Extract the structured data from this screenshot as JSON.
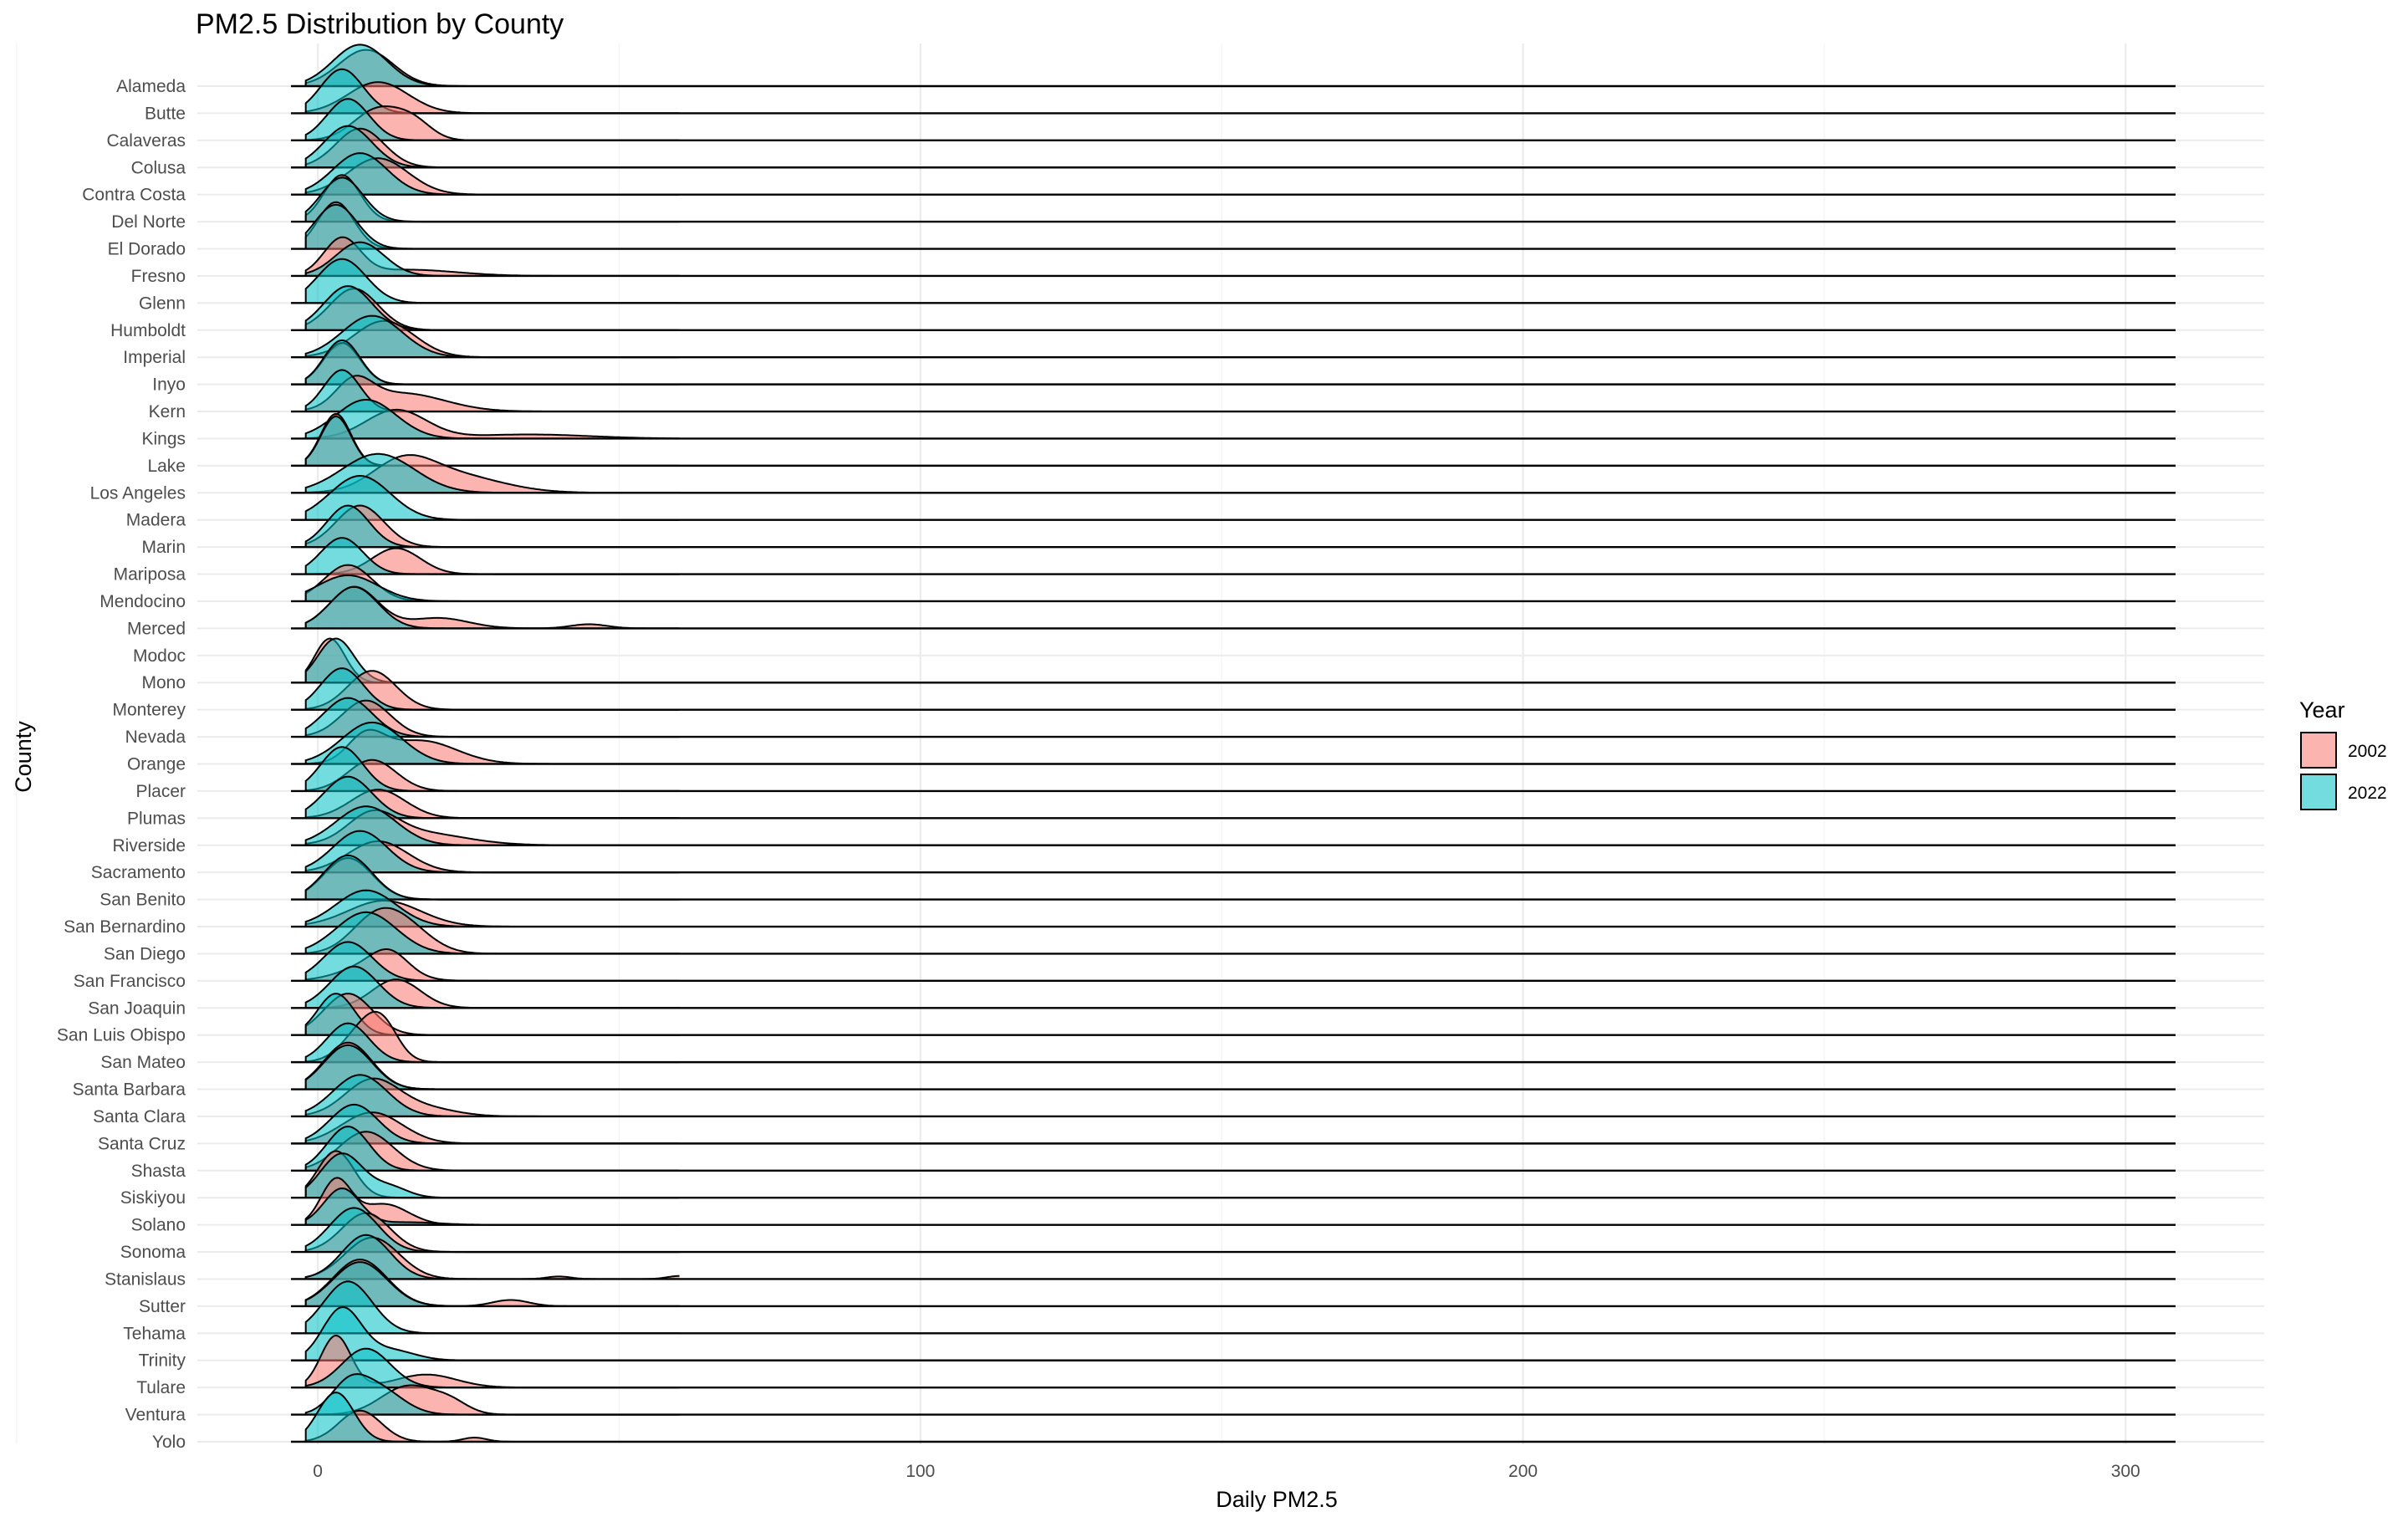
{
  "chart_data": {
    "type": "ridgeline",
    "title": "PM2.5 Distribution by County",
    "xlabel": "Daily PM2.5",
    "ylabel": "County",
    "xlim": [
      -20,
      323
    ],
    "x_ticks": [
      "0",
      "100",
      "200",
      "300"
    ],
    "grid": true,
    "legend": {
      "title": "Year",
      "position": "right",
      "entries": [
        {
          "name": "2002",
          "color": "#F8766D"
        },
        {
          "name": "2022",
          "color": "#00BFC4"
        }
      ]
    },
    "series": [
      {
        "name": "2002",
        "color": "#F8766D"
      },
      {
        "name": "2022",
        "color": "#00BFC4"
      }
    ],
    "counties": [
      {
        "name": "Yolo",
        "p2002": [
          [
            7,
            0.6,
            3.5
          ],
          [
            26,
            0.08,
            2
          ]
        ],
        "p2022": [
          [
            3,
            0.95,
            3
          ]
        ]
      },
      {
        "name": "Ventura",
        "p2002": [
          [
            15,
            0.55,
            4.5
          ],
          [
            22,
            0.2,
            3
          ]
        ],
        "p2022": [
          [
            5,
            0.5,
            3
          ],
          [
            10,
            0.5,
            4
          ]
        ]
      },
      {
        "name": "Tulare",
        "p2002": [
          [
            3,
            1.0,
            2.5
          ],
          [
            18,
            0.25,
            5
          ]
        ],
        "p2022": [
          [
            8,
            0.75,
            4
          ]
        ]
      },
      {
        "name": "Trinity",
        "p2002": [],
        "p2022": [
          [
            4,
            1.0,
            3.2
          ],
          [
            12,
            0.2,
            4
          ]
        ]
      },
      {
        "name": "Tehama",
        "p2002": [],
        "p2022": [
          [
            5,
            1.0,
            4
          ]
        ]
      },
      {
        "name": "Sutter",
        "p2002": [
          [
            7,
            0.9,
            4.5
          ],
          [
            32,
            0.12,
            3
          ]
        ],
        "p2022": [
          [
            7,
            0.85,
            4.5
          ]
        ]
      },
      {
        "name": "Stanislaus",
        "p2002": [
          [
            9,
            0.8,
            4.5
          ],
          [
            60,
            0.06,
            2
          ],
          [
            40,
            0.05,
            2
          ]
        ],
        "p2022": [
          [
            8,
            0.85,
            4
          ]
        ]
      },
      {
        "name": "Sonoma",
        "p2002": [
          [
            8,
            0.75,
            4
          ]
        ],
        "p2022": [
          [
            6,
            0.85,
            4
          ]
        ]
      },
      {
        "name": "Solano",
        "p2002": [
          [
            3,
            0.85,
            2.5
          ],
          [
            11,
            0.4,
            4
          ]
        ],
        "p2022": [
          [
            4,
            0.7,
            3
          ],
          [
            15,
            0.05,
            5
          ]
        ]
      },
      {
        "name": "Siskiyou",
        "p2002": [
          [
            3,
            0.9,
            3
          ]
        ],
        "p2022": [
          [
            4,
            0.85,
            3.5
          ],
          [
            12,
            0.2,
            3
          ]
        ]
      },
      {
        "name": "Shasta",
        "p2002": [
          [
            8,
            0.75,
            4.5
          ]
        ],
        "p2022": [
          [
            5,
            0.85,
            3.5
          ]
        ]
      },
      {
        "name": "Santa Cruz",
        "p2002": [
          [
            9,
            0.6,
            5
          ]
        ],
        "p2022": [
          [
            6,
            0.75,
            4
          ]
        ]
      },
      {
        "name": "Santa Clara",
        "p2002": [
          [
            9,
            0.7,
            4.5
          ],
          [
            18,
            0.15,
            5
          ]
        ],
        "p2022": [
          [
            7,
            0.8,
            4.5
          ]
        ]
      },
      {
        "name": "Santa Barbara",
        "p2002": [
          [
            5,
            0.9,
            4
          ]
        ],
        "p2022": [
          [
            5,
            0.85,
            4
          ]
        ]
      },
      {
        "name": "San Mateo",
        "p2002": [
          [
            8,
            0.7,
            3.5
          ],
          [
            11,
            0.4,
            2.5
          ]
        ],
        "p2022": [
          [
            5,
            0.75,
            3.5
          ]
        ]
      },
      {
        "name": "San Luis Obispo",
        "p2002": [
          [
            5,
            0.8,
            4
          ]
        ],
        "p2022": [
          [
            3,
            0.8,
            3
          ]
        ]
      },
      {
        "name": "San Joaquin",
        "p2002": [
          [
            13,
            0.55,
            4
          ]
        ],
        "p2022": [
          [
            6,
            0.8,
            4
          ]
        ]
      },
      {
        "name": "San Francisco",
        "p2002": [
          [
            12,
            0.35,
            3
          ],
          [
            9,
            0.3,
            5
          ]
        ],
        "p2022": [
          [
            5,
            0.75,
            4
          ]
        ]
      },
      {
        "name": "San Diego",
        "p2002": [
          [
            14,
            0.55,
            4.5
          ],
          [
            9,
            0.5,
            4
          ]
        ],
        "p2022": [
          [
            8,
            0.8,
            5
          ]
        ]
      },
      {
        "name": "San Bernardino",
        "p2002": [
          [
            11,
            0.5,
            6
          ]
        ],
        "p2022": [
          [
            8,
            0.7,
            5
          ]
        ]
      },
      {
        "name": "San Benito",
        "p2002": [
          [
            5,
            0.8,
            4
          ]
        ],
        "p2022": [
          [
            5,
            0.85,
            4
          ]
        ]
      },
      {
        "name": "Sacramento",
        "p2002": [
          [
            10,
            0.6,
            5
          ]
        ],
        "p2022": [
          [
            7,
            0.8,
            4.5
          ]
        ]
      },
      {
        "name": "Riverside",
        "p2002": [
          [
            16,
            0.25,
            8
          ],
          [
            9,
            0.5,
            4
          ]
        ],
        "p2022": [
          [
            8,
            0.75,
            5
          ]
        ]
      },
      {
        "name": "Plumas",
        "p2002": [
          [
            10,
            0.55,
            4.5
          ]
        ],
        "p2022": [
          [
            5,
            0.8,
            4
          ]
        ]
      },
      {
        "name": "Placer",
        "p2002": [
          [
            9,
            0.6,
            4
          ]
        ],
        "p2022": [
          [
            4,
            0.85,
            3.5
          ]
        ]
      },
      {
        "name": "Orange",
        "p2002": [
          [
            17,
            0.45,
            6
          ],
          [
            8,
            0.5,
            3
          ]
        ],
        "p2022": [
          [
            9,
            0.8,
            5
          ]
        ]
      },
      {
        "name": "Nevada",
        "p2002": [
          [
            8,
            0.7,
            4
          ]
        ],
        "p2022": [
          [
            5,
            0.75,
            4
          ]
        ]
      },
      {
        "name": "Monterey",
        "p2002": [
          [
            9,
            0.75,
            4
          ]
        ],
        "p2022": [
          [
            4,
            0.8,
            3.5
          ]
        ]
      },
      {
        "name": "Mono",
        "p2002": [
          [
            2,
            0.85,
            2.5
          ]
        ],
        "p2022": [
          [
            3,
            0.85,
            3
          ]
        ]
      },
      {
        "name": "Modoc",
        "p2002": [],
        "p2022": []
      },
      {
        "name": "Merced",
        "p2002": [
          [
            6,
            0.8,
            4
          ],
          [
            20,
            0.2,
            5
          ],
          [
            45,
            0.08,
            3
          ]
        ],
        "p2022": [
          [
            6,
            0.8,
            4
          ]
        ]
      },
      {
        "name": "Mendocino",
        "p2002": [
          [
            5,
            0.7,
            4
          ]
        ],
        "p2022": [
          [
            5,
            0.5,
            5
          ]
        ]
      },
      {
        "name": "Mariposa",
        "p2002": [
          [
            13,
            0.5,
            4
          ]
        ],
        "p2022": [
          [
            4,
            0.7,
            3.5
          ]
        ]
      },
      {
        "name": "Marin",
        "p2002": [
          [
            7,
            0.8,
            4
          ]
        ],
        "p2022": [
          [
            5,
            0.8,
            3.5
          ]
        ]
      },
      {
        "name": "Madera",
        "p2002": [],
        "p2022": [
          [
            7,
            0.85,
            5
          ]
        ]
      },
      {
        "name": "Los Angeles",
        "p2002": [
          [
            22,
            0.35,
            8
          ],
          [
            14,
            0.5,
            5
          ]
        ],
        "p2022": [
          [
            10,
            0.75,
            6
          ]
        ]
      },
      {
        "name": "Lake",
        "p2002": [
          [
            3,
            1.0,
            2.5
          ]
        ],
        "p2022": [
          [
            3,
            0.95,
            2.5
          ]
        ]
      },
      {
        "name": "Kings",
        "p2002": [
          [
            13,
            0.55,
            5
          ],
          [
            35,
            0.08,
            10
          ]
        ],
        "p2022": [
          [
            8,
            0.75,
            5
          ]
        ]
      },
      {
        "name": "Kern",
        "p2002": [
          [
            14,
            0.35,
            7
          ],
          [
            6,
            0.5,
            3
          ]
        ],
        "p2022": [
          [
            4,
            0.8,
            3
          ]
        ]
      },
      {
        "name": "Inyo",
        "p2002": [
          [
            4,
            0.8,
            3
          ]
        ],
        "p2022": [
          [
            4,
            0.85,
            3
          ]
        ]
      },
      {
        "name": "Imperial",
        "p2002": [
          [
            11,
            0.7,
            5
          ]
        ],
        "p2022": [
          [
            9,
            0.8,
            5
          ]
        ]
      },
      {
        "name": "Humboldt",
        "p2002": [
          [
            6,
            0.8,
            4
          ]
        ],
        "p2022": [
          [
            5,
            0.85,
            4
          ]
        ]
      },
      {
        "name": "Glenn",
        "p2002": [],
        "p2022": [
          [
            4,
            0.85,
            4
          ]
        ]
      },
      {
        "name": "Fresno",
        "p2002": [
          [
            4,
            0.7,
            3
          ],
          [
            15,
            0.12,
            8
          ]
        ],
        "p2022": [
          [
            7,
            0.65,
            4
          ]
        ]
      },
      {
        "name": "El Dorado",
        "p2002": [
          [
            3,
            0.9,
            3
          ]
        ],
        "p2022": [
          [
            3,
            0.85,
            3.5
          ]
        ]
      },
      {
        "name": "Del Norte",
        "p2002": [
          [
            4,
            0.9,
            3
          ]
        ],
        "p2022": [
          [
            4,
            0.85,
            3.5
          ]
        ]
      },
      {
        "name": "Contra Costa",
        "p2002": [
          [
            10,
            0.7,
            5
          ]
        ],
        "p2022": [
          [
            7,
            0.8,
            4.5
          ]
        ]
      },
      {
        "name": "Colusa",
        "p2002": [
          [
            7,
            0.75,
            4
          ]
        ],
        "p2022": [
          [
            5,
            0.8,
            4
          ]
        ]
      },
      {
        "name": "Calaveras",
        "p2002": [
          [
            10,
            0.6,
            4
          ],
          [
            16,
            0.3,
            3
          ]
        ],
        "p2022": [
          [
            5,
            0.8,
            3.5
          ]
        ]
      },
      {
        "name": "Butte",
        "p2002": [
          [
            10,
            0.6,
            5
          ]
        ],
        "p2022": [
          [
            4,
            0.85,
            3.5
          ]
        ]
      },
      {
        "name": "Alameda",
        "p2002": [
          [
            8,
            0.7,
            4.5
          ]
        ],
        "p2022": [
          [
            7,
            0.8,
            4.5
          ]
        ]
      }
    ]
  }
}
